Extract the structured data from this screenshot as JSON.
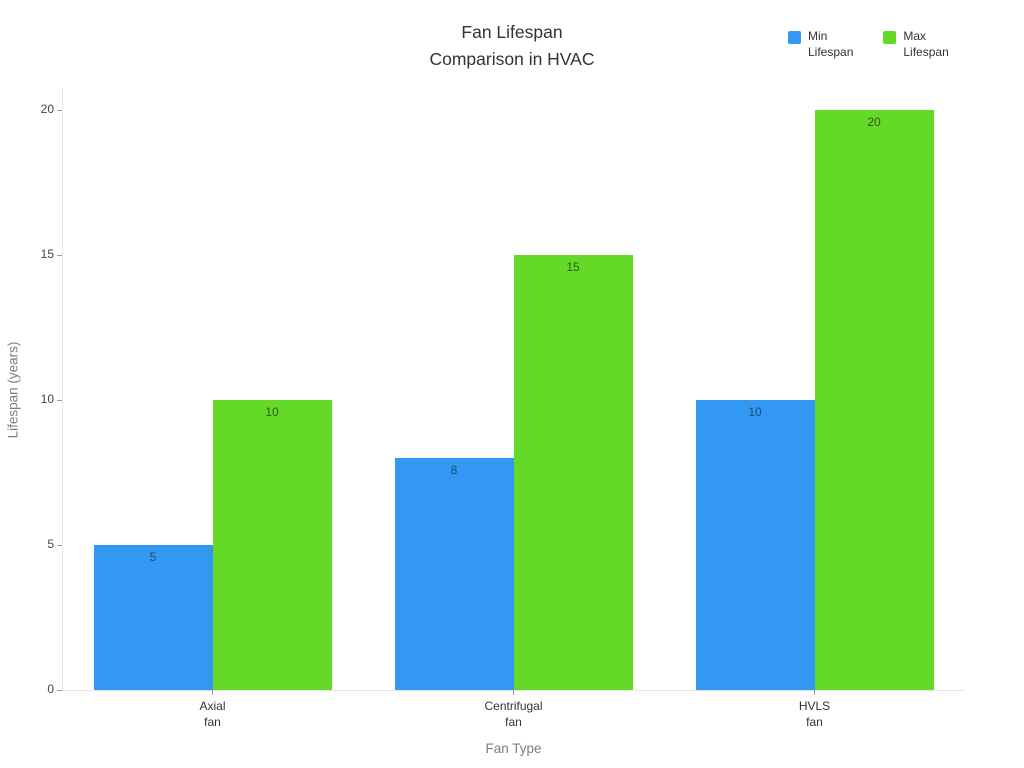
{
  "chart_data": {
    "type": "bar",
    "title": "Fan Lifespan Comparison in HVAC",
    "display_title": "Fan Lifespan\nComparison in HVAC",
    "categories": [
      "Axial fan",
      "Centrifugal fan",
      "HVLS fan"
    ],
    "category_lines": [
      [
        "Axial",
        "fan"
      ],
      [
        "Centrifugal",
        "fan"
      ],
      [
        "HVLS",
        "fan"
      ]
    ],
    "series": [
      {
        "name": "Min Lifespan",
        "legend_label": "Min\nLifespan",
        "values": [
          5,
          8,
          10
        ],
        "color": "#3398f2",
        "label_color": "#174e75"
      },
      {
        "name": "Max Lifespan",
        "legend_label": "Max\nLifespan",
        "values": [
          10,
          15,
          20
        ],
        "color": "#64d928",
        "label_color": "#2b6110"
      }
    ],
    "xlabel": "Fan Type",
    "ylabel": "Lifespan (years)",
    "ylim": [
      0,
      20
    ],
    "yticks": [
      0,
      5,
      10,
      15,
      20
    ],
    "grid": false,
    "legend_position": "top-right",
    "background_color": "#ffffff",
    "axis_line_color": "#e6e6e6",
    "tick_color": "#999999",
    "title_color": "#333333",
    "axis_title_color": "#7f7f7f",
    "tick_label_color": "#444444"
  }
}
